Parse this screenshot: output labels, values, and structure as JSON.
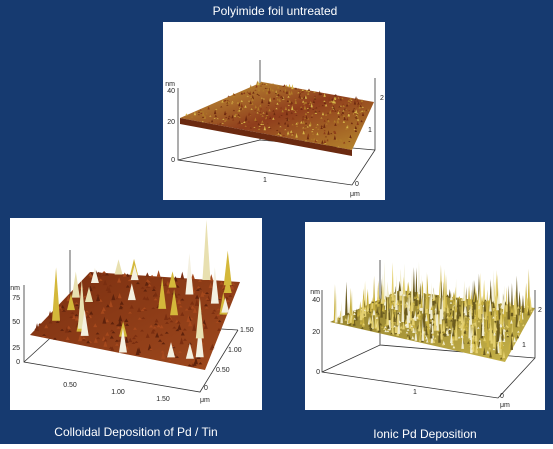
{
  "panels": [
    {
      "caption": "Polyimide foil untreated",
      "z_unit": "nm",
      "z_labels": [
        "40",
        "20",
        "0"
      ],
      "x_labels": [
        "1"
      ],
      "y_labels": [
        "2",
        "1",
        "0"
      ],
      "x_unit": "μm"
    },
    {
      "caption": "Colloidal Deposition of Pd / Tin",
      "z_unit": "nm",
      "z_labels": [
        "75",
        "50",
        "25",
        "0"
      ],
      "x_labels": [
        "0.50",
        "1.00",
        "1.50"
      ],
      "y_labels": [
        "1.50",
        "1.00",
        "0.50",
        "0"
      ],
      "x_unit": "μm"
    },
    {
      "caption": "Ionic Pd Deposition",
      "z_unit": "nm",
      "z_labels": [
        "40",
        "20",
        "0"
      ],
      "x_labels": [
        "1"
      ],
      "y_labels": [
        "2",
        "1",
        "0"
      ],
      "x_unit": "μm"
    }
  ]
}
